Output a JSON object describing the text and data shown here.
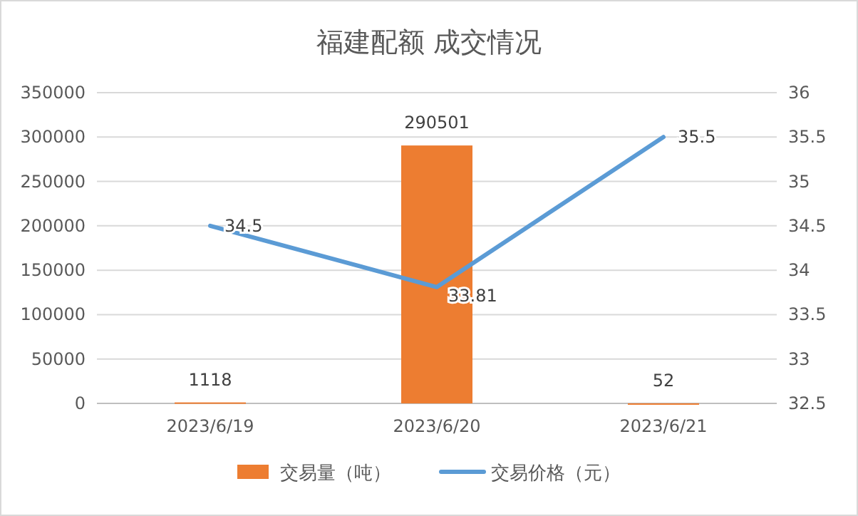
{
  "chart_data": {
    "type": "bar",
    "title": "福建配额 成交情况",
    "categories": [
      "2023/6/19",
      "2023/6/20",
      "2023/6/21"
    ],
    "series": [
      {
        "name": "交易量（吨）",
        "color": "#ed7d31",
        "values": [
          1118,
          290501,
          52
        ]
      },
      {
        "name": "交易价格（元）",
        "type": "line",
        "axis": "y2",
        "color": "#5b9bd5",
        "values": [
          34.5,
          33.81,
          35.5
        ]
      }
    ],
    "ylim": [
      0,
      350000
    ],
    "yticks": [
      0,
      50000,
      100000,
      150000,
      200000,
      250000,
      300000,
      350000
    ],
    "y2lim": [
      32.5,
      36
    ],
    "y2ticks": [
      32.5,
      33,
      33.5,
      34,
      34.5,
      35,
      35.5,
      36
    ],
    "grid": "y",
    "legend": "bottom",
    "data_labels": true,
    "marker": "none",
    "line_style": "solid"
  }
}
